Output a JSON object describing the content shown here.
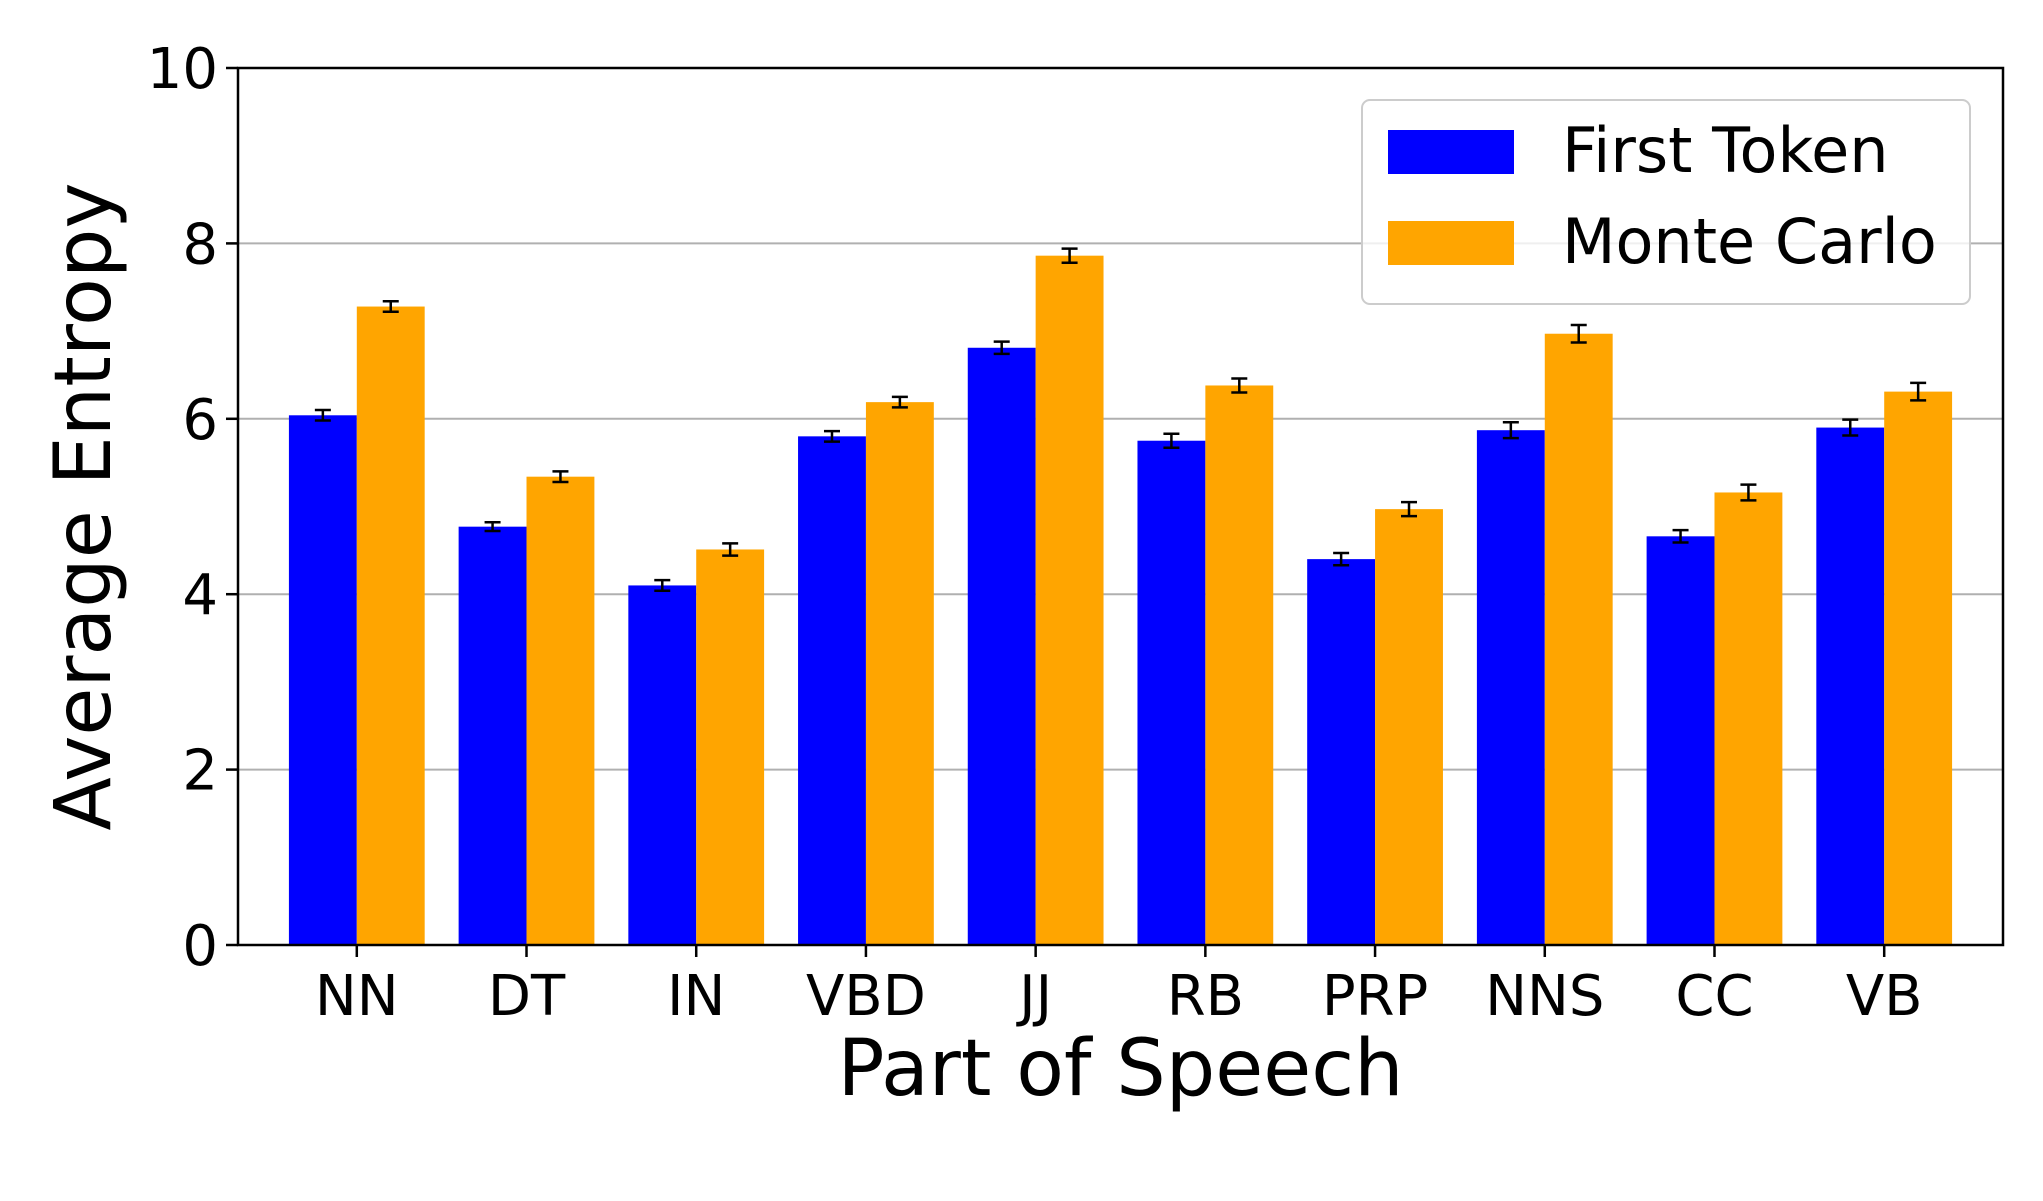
{
  "chart_data": {
    "type": "bar",
    "title": "",
    "xlabel": "Part of Speech",
    "ylabel": "Average Entropy",
    "categories": [
      "NN",
      "DT",
      "IN",
      "VBD",
      "JJ",
      "RB",
      "PRP",
      "NNS",
      "CC",
      "VB"
    ],
    "series": [
      {
        "name": "First Token",
        "color": "#0000ff",
        "values": [
          6.04,
          4.77,
          4.1,
          5.8,
          6.81,
          5.75,
          4.4,
          5.87,
          4.66,
          5.9
        ],
        "errors": [
          0.06,
          0.05,
          0.06,
          0.06,
          0.07,
          0.08,
          0.07,
          0.09,
          0.07,
          0.09
        ]
      },
      {
        "name": "Monte Carlo",
        "color": "#ffa500",
        "values": [
          7.28,
          5.34,
          4.51,
          6.19,
          7.86,
          6.38,
          4.97,
          6.97,
          5.16,
          6.31
        ],
        "errors": [
          0.06,
          0.06,
          0.07,
          0.06,
          0.08,
          0.08,
          0.08,
          0.1,
          0.09,
          0.1
        ]
      }
    ],
    "ylim": [
      0,
      10
    ],
    "yticks": [
      0,
      2,
      4,
      6,
      8,
      10
    ],
    "grid": "y",
    "legend_position": "top-right"
  }
}
